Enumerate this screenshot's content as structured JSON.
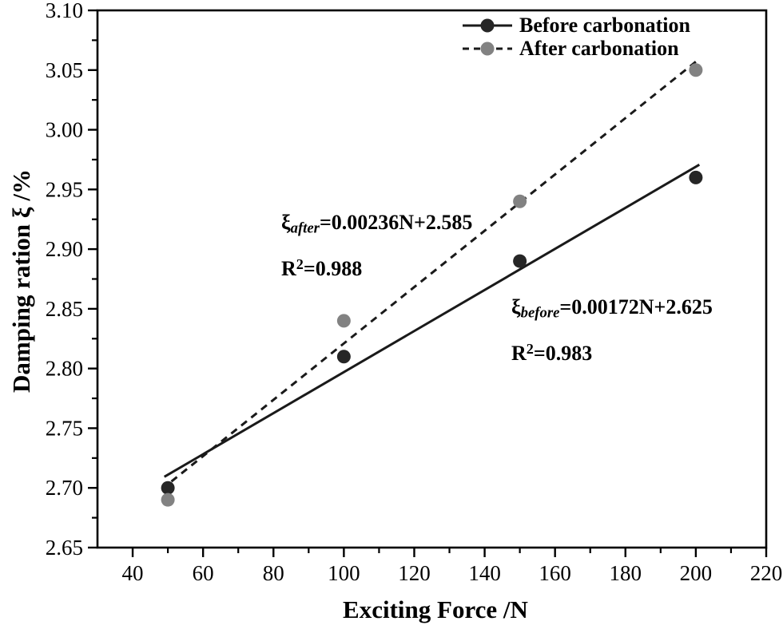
{
  "figure": {
    "background": "#ffffff",
    "axis_color": "#000000"
  },
  "legend": {
    "position": "top-right",
    "items": [
      {
        "series_index": 0,
        "line_style": "solid",
        "line_color": "#1a1a1a",
        "marker_color": "#262626"
      },
      {
        "series_index": 1,
        "line_style": "dashed",
        "line_color": "#1a1a1a",
        "marker_color": "#828282"
      }
    ]
  },
  "annotations": [
    {
      "xi": "ξ",
      "subscript": "after",
      "equation": "=0.00236N+2.585",
      "r_base": "R",
      "r_sup": "2",
      "r_value": "=0.988"
    },
    {
      "xi": "ξ",
      "subscript": "before",
      "equation": "=0.00172N+2.625",
      "r_base": "R",
      "r_sup": "2",
      "r_value": "=0.983"
    }
  ],
  "chart_data": {
    "type": "scatter",
    "title": "",
    "xlabel": "Exciting Force /N",
    "ylabel": "Damping ration ξ /%",
    "xlim": [
      30,
      220
    ],
    "ylim": [
      2.65,
      3.1
    ],
    "grid": false,
    "legend_position": "top-right",
    "x_major_ticks": [
      40,
      60,
      80,
      100,
      120,
      140,
      160,
      180,
      200,
      220
    ],
    "x_tick_labels": [
      "40",
      "60",
      "80",
      "100",
      "120",
      "140",
      "160",
      "180",
      "200",
      "220"
    ],
    "x_minor_ticks": [
      50,
      70,
      90,
      110,
      130,
      150,
      170,
      190,
      210
    ],
    "y_major_ticks": [
      2.65,
      2.7,
      2.75,
      2.8,
      2.85,
      2.9,
      2.95,
      3.0,
      3.05,
      3.1
    ],
    "y_tick_labels": [
      "2.65",
      "2.70",
      "2.75",
      "2.80",
      "2.85",
      "2.90",
      "2.95",
      "3.00",
      "3.05",
      "3.10"
    ],
    "y_minor_ticks": [
      2.675,
      2.725,
      2.775,
      2.825,
      2.875,
      2.925,
      2.975,
      3.025,
      3.075
    ],
    "series": [
      {
        "name": "Before carbonation",
        "marker_color": "#262626",
        "line_color": "#1a1a1a",
        "line_style": "solid",
        "x": [
          50,
          100,
          150,
          200
        ],
        "y": [
          2.7,
          2.81,
          2.89,
          2.96
        ],
        "fit": {
          "slope": 0.00172,
          "intercept": 2.625,
          "x_start": 49,
          "x_end": 201,
          "r2": 0.983
        }
      },
      {
        "name": "After carbonation",
        "marker_color": "#828282",
        "line_color": "#1a1a1a",
        "line_style": "dashed",
        "x": [
          50,
          100,
          150,
          200
        ],
        "y": [
          2.69,
          2.84,
          2.94,
          3.05
        ],
        "fit": {
          "slope": 0.00236,
          "intercept": 2.585,
          "x_start": 51,
          "x_end": 201,
          "r2": 0.988
        }
      }
    ]
  }
}
